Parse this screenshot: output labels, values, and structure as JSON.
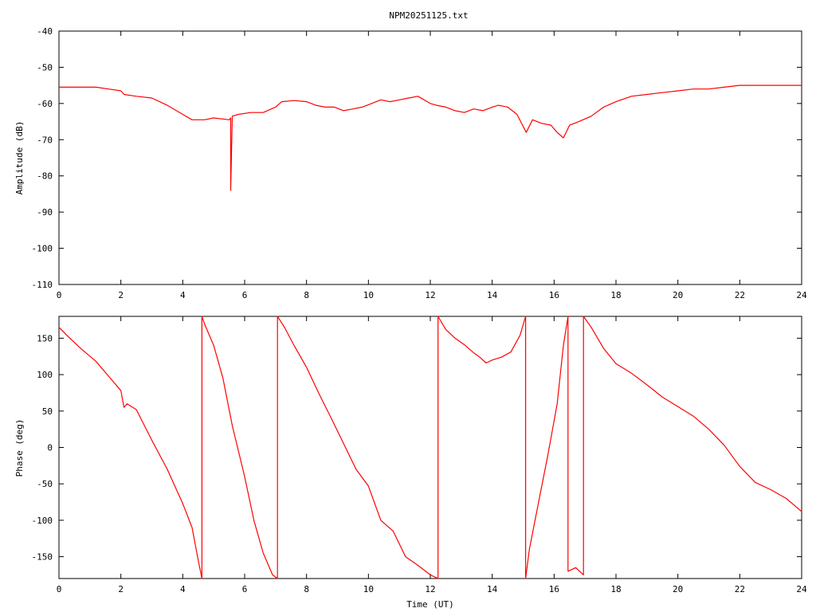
{
  "title": "NPM20251125.txt",
  "colors": {
    "series": "#ff0000",
    "axis": "#000000",
    "background": "#ffffff"
  },
  "chart_data": [
    {
      "type": "line",
      "ylabel": "Amplitude (dB)",
      "xlabel": "",
      "xlim": [
        0,
        24
      ],
      "ylim": [
        -110,
        -40
      ],
      "xticks": [
        "0",
        "2",
        "4",
        "6",
        "8",
        "10",
        "12",
        "14",
        "16",
        "18",
        "20",
        "22",
        "24"
      ],
      "yticks": [
        "-40",
        "-50",
        "-60",
        "-70",
        "-80",
        "-90",
        "-100",
        "-110"
      ],
      "grid": false,
      "series": [
        {
          "x": [
            0,
            0.5,
            1,
            1.2,
            1.6,
            2.0,
            2.1,
            2.5,
            3.0,
            3.5,
            4.0,
            4.3,
            4.7,
            5.0,
            5.5,
            5.55,
            5.55,
            5.6,
            5.8,
            6.2,
            6.6,
            7.0,
            7.2,
            7.6,
            8.0,
            8.3,
            8.6,
            8.9,
            9.2,
            9.5,
            9.8,
            10.1,
            10.4,
            10.7,
            11.0,
            11.3,
            11.6,
            12.0,
            12.2,
            12.5,
            12.8,
            13.1,
            13.4,
            13.7,
            14.0,
            14.2,
            14.5,
            14.8,
            15.1,
            15.3,
            15.6,
            15.9,
            16.1,
            16.3,
            16.5,
            16.8,
            17.2,
            17.6,
            18.0,
            18.5,
            19.0,
            19.5,
            20.0,
            20.5,
            21.0,
            21.5,
            22.0,
            22.5,
            23.0,
            23.5,
            24.0
          ],
          "values": [
            -55.5,
            -55.5,
            -55.5,
            -55.5,
            -56,
            -56.5,
            -57.5,
            -58,
            -58.5,
            -60.5,
            -63,
            -64.5,
            -64.5,
            -64,
            -64.5,
            -64,
            -84,
            -63.5,
            -63,
            -62.5,
            -62.5,
            -61,
            -59.5,
            -59.2,
            -59.5,
            -60.5,
            -61,
            -61,
            -62,
            -61.5,
            -61,
            -60,
            -59,
            -59.5,
            -59,
            -58.5,
            -58,
            -60,
            -60.5,
            -61,
            -62,
            -62.5,
            -61.5,
            -62,
            -61,
            -60.5,
            -61,
            -63,
            -68,
            -64.5,
            -65.5,
            -66,
            -68,
            -69.5,
            -66,
            -65,
            -63.5,
            -61,
            -59.5,
            -58,
            -57.5,
            -57,
            -56.5,
            -56,
            -56,
            -55.5,
            -55,
            -55,
            -55,
            -55,
            -55
          ]
        }
      ]
    },
    {
      "type": "line",
      "ylabel": "Phase (deg)",
      "xlabel": "Time (UT)",
      "xlim": [
        0,
        24
      ],
      "ylim": [
        -180,
        180
      ],
      "xticks": [
        "0",
        "2",
        "4",
        "6",
        "8",
        "10",
        "12",
        "14",
        "16",
        "18",
        "20",
        "22",
        "24"
      ],
      "yticks": [
        "150",
        "100",
        "50",
        "0",
        "-50",
        "-100",
        "-150"
      ],
      "grid": false,
      "series": [
        {
          "x": [
            0,
            0.3,
            0.7,
            1.2,
            1.6,
            2.0,
            2.1,
            2.2,
            2.5,
            3.0,
            3.5,
            4.0,
            4.3,
            4.5,
            4.62,
            4.62,
            4.7,
            5.0,
            5.3,
            5.6,
            6.0,
            6.3,
            6.6,
            6.9,
            7.06,
            7.06,
            7.3,
            7.6,
            8.0,
            8.4,
            8.8,
            9.2,
            9.6,
            10.0,
            10.4,
            10.8,
            11.2,
            11.6,
            12.0,
            12.25,
            12.25,
            12.5,
            12.8,
            13.1,
            13.4,
            13.6,
            13.8,
            14.0,
            14.3,
            14.6,
            14.9,
            15.08,
            15.08,
            15.2,
            15.5,
            15.8,
            16.1,
            16.3,
            16.45,
            16.45,
            16.7,
            16.95,
            16.95,
            17.2,
            17.6,
            18.0,
            18.5,
            19.0,
            19.5,
            20.0,
            20.5,
            21.0,
            21.5,
            22.0,
            22.5,
            23.0,
            23.5,
            24.0
          ],
          "values": [
            165,
            152,
            136,
            118,
            98,
            78,
            55,
            60,
            52,
            10,
            -30,
            -77,
            -110,
            -155,
            -180,
            180,
            170,
            140,
            95,
            30,
            -40,
            -100,
            -145,
            -175,
            -180,
            180,
            164,
            140,
            110,
            74,
            40,
            5,
            -30,
            -53,
            -100,
            -115,
            -150,
            -162,
            -175,
            -180,
            180,
            162,
            150,
            141,
            130,
            124,
            116,
            120,
            124,
            131,
            154,
            180,
            -180,
            -140,
            -75,
            -10,
            60,
            140,
            180,
            -170,
            -165,
            -175,
            180,
            165,
            136,
            115,
            102,
            86,
            69,
            56,
            43,
            25,
            3,
            -26,
            -48,
            -58,
            -70,
            -88
          ]
        }
      ]
    }
  ]
}
